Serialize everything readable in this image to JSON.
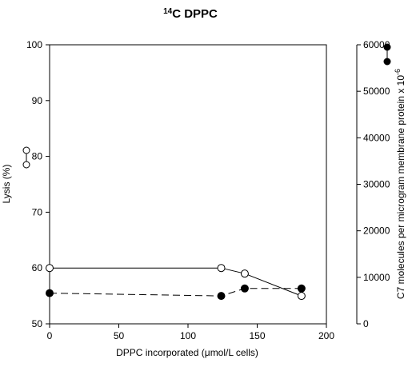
{
  "chart_data": {
    "type": "line",
    "title_prefix": "14",
    "title_rest": "C DPPC",
    "xlabel": "DPPC incorporated (μmol/L cells)",
    "ylabel_left": "Lysis (%)",
    "ylabel_right": "C7 molecules per microgram membrane protein x 10",
    "ylabel_right_exponent": "-6",
    "xlim": [
      0,
      200
    ],
    "ylim_left": [
      50,
      100
    ],
    "ylim_right": [
      0,
      60000
    ],
    "x_ticks": [
      "0",
      "50",
      "100",
      "150",
      "200"
    ],
    "y_left_ticks": [
      "50",
      "60",
      "70",
      "80",
      "90",
      "100"
    ],
    "y_right_ticks": [
      "0",
      "10000",
      "20000",
      "30000",
      "40000",
      "50000",
      "60000"
    ],
    "grid": false,
    "series": [
      {
        "marker": "open-circle",
        "line": "solid",
        "axis": "left",
        "x": [
          0,
          124,
          141,
          182
        ],
        "y": [
          60,
          60,
          59,
          55
        ]
      },
      {
        "marker": "filled-circle",
        "line": "dashed",
        "axis": "right",
        "x": [
          0,
          124,
          141,
          182
        ],
        "y": [
          6600,
          6000,
          7600,
          7600
        ]
      }
    ]
  }
}
